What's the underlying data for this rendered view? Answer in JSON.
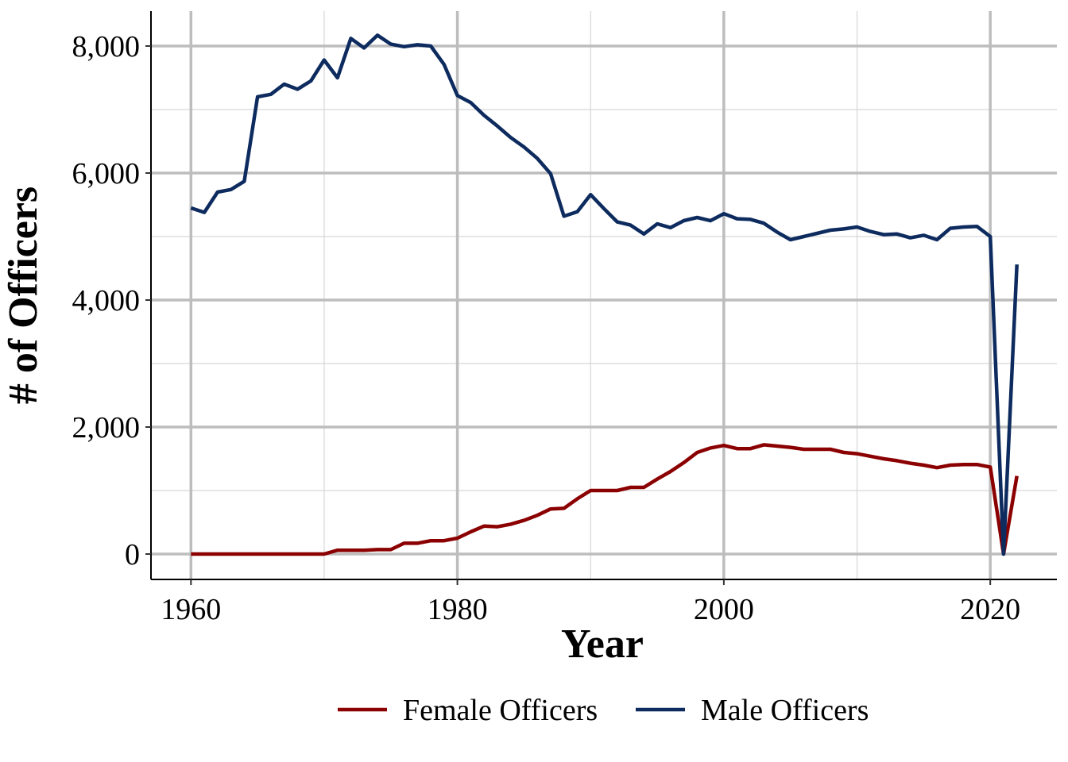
{
  "chart_data": {
    "type": "line",
    "xlabel": "Year",
    "ylabel": "# of Officers",
    "xlim": [
      1957,
      2025
    ],
    "ylim": [
      -400,
      8550
    ],
    "x_ticks": [
      1960,
      1980,
      2000,
      2020
    ],
    "x_tick_labels": [
      "1960",
      "1980",
      "2000",
      "2020"
    ],
    "y_ticks": [
      0,
      2000,
      4000,
      6000,
      8000
    ],
    "y_tick_labels": [
      "0",
      "2,000",
      "4,000",
      "6,000",
      "8,000"
    ],
    "grid": true,
    "legend_position": "bottom",
    "x": [
      1960,
      1961,
      1962,
      1963,
      1964,
      1965,
      1966,
      1967,
      1968,
      1969,
      1970,
      1971,
      1972,
      1973,
      1974,
      1975,
      1976,
      1977,
      1978,
      1979,
      1980,
      1981,
      1982,
      1983,
      1984,
      1985,
      1986,
      1987,
      1988,
      1989,
      1990,
      1991,
      1992,
      1993,
      1994,
      1995,
      1996,
      1997,
      1998,
      1999,
      2000,
      2001,
      2002,
      2003,
      2004,
      2005,
      2006,
      2007,
      2008,
      2009,
      2010,
      2011,
      2012,
      2013,
      2014,
      2015,
      2016,
      2017,
      2018,
      2019,
      2020,
      2021,
      2022
    ],
    "series": [
      {
        "name": "Female Officers",
        "color": "#8b0000",
        "values": [
          0,
          0,
          0,
          0,
          0,
          0,
          0,
          0,
          0,
          0,
          0,
          60,
          60,
          60,
          70,
          70,
          170,
          170,
          210,
          210,
          250,
          350,
          440,
          430,
          470,
          530,
          610,
          710,
          720,
          870,
          1000,
          1000,
          1000,
          1050,
          1050,
          1180,
          1300,
          1440,
          1600,
          1670,
          1710,
          1660,
          1660,
          1720,
          1700,
          1680,
          1650,
          1650,
          1650,
          1600,
          1580,
          1540,
          1500,
          1470,
          1430,
          1400,
          1360,
          1400,
          1410,
          1410,
          1370,
          0,
          1230
        ]
      },
      {
        "name": "Male Officers",
        "color": "#0d2b5e",
        "values": [
          5450,
          5380,
          5700,
          5740,
          5870,
          7200,
          7240,
          7400,
          7320,
          7450,
          7780,
          7500,
          8120,
          7970,
          8170,
          8030,
          7990,
          8020,
          8000,
          7710,
          7220,
          7110,
          6910,
          6740,
          6560,
          6410,
          6230,
          5990,
          5320,
          5390,
          5660,
          5440,
          5230,
          5180,
          5040,
          5200,
          5140,
          5250,
          5300,
          5250,
          5360,
          5280,
          5270,
          5210,
          5070,
          4950,
          5000,
          5050,
          5100,
          5120,
          5150,
          5080,
          5030,
          5040,
          4980,
          5020,
          4950,
          5130,
          5150,
          5160,
          5000,
          0,
          4560
        ]
      }
    ]
  }
}
